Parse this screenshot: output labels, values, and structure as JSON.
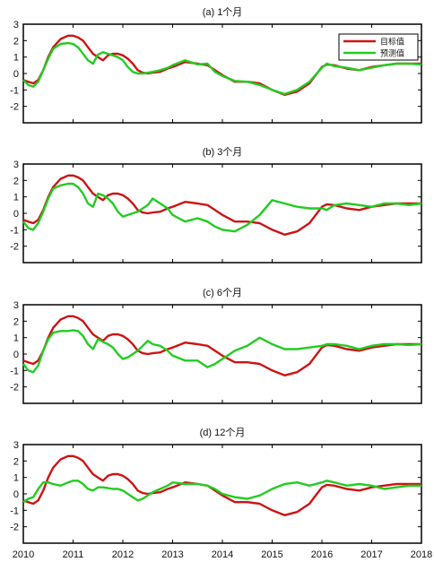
{
  "legend": {
    "target": "目标值",
    "predicted": "预测值"
  },
  "colors": {
    "target": "#cc1414",
    "predicted": "#22cc22",
    "frame": "#000000"
  },
  "x_ticks": [
    "2010",
    "2011",
    "2012",
    "2013",
    "2014",
    "2015",
    "2016",
    "2017",
    "2018"
  ],
  "chart_data": [
    {
      "type": "line",
      "title": "(a) 1个月",
      "xlim": [
        2010,
        2018
      ],
      "ylim": [
        -3,
        3
      ],
      "yticks": [
        -2,
        -1,
        0,
        1,
        2,
        3
      ],
      "legend": "top-right",
      "series": [
        {
          "name": "目标值",
          "x": [
            2010.0,
            2010.1,
            2010.2,
            2010.3,
            2010.4,
            2010.5,
            2010.6,
            2010.75,
            2010.9,
            2011.0,
            2011.1,
            2011.2,
            2011.3,
            2011.4,
            2011.5,
            2011.6,
            2011.7,
            2011.8,
            2011.9,
            2012.0,
            2012.1,
            2012.2,
            2012.3,
            2012.4,
            2012.5,
            2012.6,
            2012.75,
            2012.9,
            2013.0,
            2013.25,
            2013.5,
            2013.7,
            2013.85,
            2014.0,
            2014.25,
            2014.5,
            2014.75,
            2015.0,
            2015.25,
            2015.5,
            2015.75,
            2016.0,
            2016.1,
            2016.25,
            2016.5,
            2016.75,
            2017.0,
            2017.25,
            2017.5,
            2017.75,
            2018.0
          ],
          "y": [
            -0.4,
            -0.5,
            -0.6,
            -0.4,
            0.2,
            1.0,
            1.6,
            2.1,
            2.3,
            2.3,
            2.2,
            2.0,
            1.6,
            1.2,
            1.0,
            0.8,
            1.1,
            1.2,
            1.2,
            1.1,
            0.9,
            0.6,
            0.2,
            0.05,
            0.0,
            0.05,
            0.1,
            0.3,
            0.4,
            0.7,
            0.6,
            0.5,
            0.2,
            -0.1,
            -0.5,
            -0.5,
            -0.6,
            -1.0,
            -1.3,
            -1.1,
            -0.6,
            0.4,
            0.55,
            0.5,
            0.3,
            0.2,
            0.4,
            0.5,
            0.6,
            0.6,
            0.6
          ]
        },
        {
          "name": "预测值",
          "x": [
            2010.0,
            2010.1,
            2010.2,
            2010.3,
            2010.4,
            2010.5,
            2010.6,
            2010.75,
            2010.9,
            2011.0,
            2011.1,
            2011.2,
            2011.3,
            2011.4,
            2011.5,
            2011.6,
            2011.7,
            2011.8,
            2011.9,
            2012.0,
            2012.1,
            2012.2,
            2012.3,
            2012.4,
            2012.5,
            2012.6,
            2012.75,
            2012.9,
            2013.0,
            2013.25,
            2013.5,
            2013.7,
            2013.85,
            2014.0,
            2014.25,
            2014.5,
            2014.75,
            2015.0,
            2015.25,
            2015.5,
            2015.75,
            2016.0,
            2016.1,
            2016.25,
            2016.5,
            2016.75,
            2017.0,
            2017.25,
            2017.5,
            2017.75,
            2018.0
          ],
          "y": [
            -0.4,
            -0.7,
            -0.8,
            -0.5,
            0.2,
            0.9,
            1.5,
            1.8,
            1.85,
            1.8,
            1.6,
            1.2,
            0.8,
            0.6,
            1.15,
            1.3,
            1.2,
            1.1,
            1.0,
            0.8,
            0.4,
            0.1,
            0.0,
            0.0,
            0.05,
            0.1,
            0.2,
            0.35,
            0.5,
            0.8,
            0.55,
            0.6,
            0.1,
            -0.15,
            -0.45,
            -0.5,
            -0.7,
            -1.0,
            -1.25,
            -1.0,
            -0.5,
            0.35,
            0.6,
            0.45,
            0.35,
            0.2,
            0.35,
            0.5,
            0.6,
            0.6,
            0.55
          ]
        }
      ]
    },
    {
      "type": "line",
      "title": "(b) 3个月",
      "xlim": [
        2010,
        2018
      ],
      "ylim": [
        -3,
        3
      ],
      "yticks": [
        -2,
        -1,
        0,
        1,
        2,
        3
      ],
      "series": [
        {
          "name": "目标值",
          "x": [
            2010.0,
            2010.1,
            2010.2,
            2010.3,
            2010.4,
            2010.5,
            2010.6,
            2010.75,
            2010.9,
            2011.0,
            2011.1,
            2011.2,
            2011.3,
            2011.4,
            2011.5,
            2011.6,
            2011.7,
            2011.8,
            2011.9,
            2012.0,
            2012.1,
            2012.2,
            2012.3,
            2012.4,
            2012.5,
            2012.6,
            2012.75,
            2012.9,
            2013.0,
            2013.25,
            2013.5,
            2013.7,
            2013.85,
            2014.0,
            2014.25,
            2014.5,
            2014.75,
            2015.0,
            2015.25,
            2015.5,
            2015.75,
            2016.0,
            2016.1,
            2016.25,
            2016.5,
            2016.75,
            2017.0,
            2017.25,
            2017.5,
            2017.75,
            2018.0
          ],
          "y": [
            -0.4,
            -0.5,
            -0.6,
            -0.4,
            0.2,
            1.0,
            1.6,
            2.1,
            2.3,
            2.3,
            2.2,
            2.0,
            1.6,
            1.2,
            1.0,
            0.8,
            1.1,
            1.2,
            1.2,
            1.1,
            0.9,
            0.6,
            0.2,
            0.05,
            0.0,
            0.05,
            0.1,
            0.3,
            0.4,
            0.7,
            0.6,
            0.5,
            0.2,
            -0.1,
            -0.5,
            -0.5,
            -0.6,
            -1.0,
            -1.3,
            -1.1,
            -0.6,
            0.4,
            0.55,
            0.5,
            0.3,
            0.2,
            0.4,
            0.5,
            0.6,
            0.6,
            0.6
          ]
        },
        {
          "name": "预测值",
          "x": [
            2010.0,
            2010.1,
            2010.2,
            2010.3,
            2010.4,
            2010.5,
            2010.6,
            2010.75,
            2010.9,
            2011.0,
            2011.1,
            2011.2,
            2011.3,
            2011.4,
            2011.5,
            2011.6,
            2011.7,
            2011.8,
            2011.9,
            2012.0,
            2012.1,
            2012.2,
            2012.3,
            2012.4,
            2012.5,
            2012.6,
            2012.75,
            2012.9,
            2013.0,
            2013.25,
            2013.5,
            2013.7,
            2013.85,
            2014.0,
            2014.25,
            2014.5,
            2014.75,
            2015.0,
            2015.25,
            2015.5,
            2015.75,
            2016.0,
            2016.1,
            2016.25,
            2016.5,
            2016.75,
            2017.0,
            2017.25,
            2017.5,
            2017.75,
            2018.0
          ],
          "y": [
            -0.5,
            -0.9,
            -1.0,
            -0.6,
            0.1,
            0.9,
            1.5,
            1.7,
            1.8,
            1.8,
            1.6,
            1.2,
            0.6,
            0.4,
            1.2,
            1.1,
            0.9,
            0.6,
            0.1,
            -0.2,
            -0.1,
            0.0,
            0.1,
            0.3,
            0.5,
            0.9,
            0.6,
            0.3,
            -0.1,
            -0.5,
            -0.3,
            -0.5,
            -0.8,
            -1.0,
            -1.1,
            -0.7,
            -0.1,
            0.8,
            0.6,
            0.4,
            0.3,
            0.3,
            0.2,
            0.5,
            0.6,
            0.5,
            0.4,
            0.6,
            0.6,
            0.5,
            0.6
          ]
        }
      ]
    },
    {
      "type": "line",
      "title": "(c) 6个月",
      "xlim": [
        2010,
        2018
      ],
      "ylim": [
        -3,
        3
      ],
      "yticks": [
        -2,
        -1,
        0,
        1,
        2,
        3
      ],
      "series": [
        {
          "name": "目标值",
          "x": [
            2010.0,
            2010.1,
            2010.2,
            2010.3,
            2010.4,
            2010.5,
            2010.6,
            2010.75,
            2010.9,
            2011.0,
            2011.1,
            2011.2,
            2011.3,
            2011.4,
            2011.5,
            2011.6,
            2011.7,
            2011.8,
            2011.9,
            2012.0,
            2012.1,
            2012.2,
            2012.3,
            2012.4,
            2012.5,
            2012.6,
            2012.75,
            2012.9,
            2013.0,
            2013.25,
            2013.5,
            2013.7,
            2013.85,
            2014.0,
            2014.25,
            2014.5,
            2014.75,
            2015.0,
            2015.25,
            2015.5,
            2015.75,
            2016.0,
            2016.1,
            2016.25,
            2016.5,
            2016.75,
            2017.0,
            2017.25,
            2017.5,
            2017.75,
            2018.0
          ],
          "y": [
            -0.4,
            -0.5,
            -0.6,
            -0.4,
            0.2,
            1.0,
            1.6,
            2.1,
            2.3,
            2.3,
            2.2,
            2.0,
            1.6,
            1.2,
            1.0,
            0.8,
            1.1,
            1.2,
            1.2,
            1.1,
            0.9,
            0.6,
            0.2,
            0.05,
            0.0,
            0.05,
            0.1,
            0.3,
            0.4,
            0.7,
            0.6,
            0.5,
            0.2,
            -0.1,
            -0.5,
            -0.5,
            -0.6,
            -1.0,
            -1.3,
            -1.1,
            -0.6,
            0.4,
            0.55,
            0.5,
            0.3,
            0.2,
            0.4,
            0.5,
            0.6,
            0.6,
            0.6
          ]
        },
        {
          "name": "预测值",
          "x": [
            2010.0,
            2010.1,
            2010.2,
            2010.3,
            2010.4,
            2010.5,
            2010.6,
            2010.75,
            2010.9,
            2011.0,
            2011.1,
            2011.2,
            2011.3,
            2011.4,
            2011.5,
            2011.6,
            2011.7,
            2011.8,
            2011.9,
            2012.0,
            2012.1,
            2012.2,
            2012.3,
            2012.4,
            2012.5,
            2012.6,
            2012.75,
            2012.9,
            2013.0,
            2013.25,
            2013.5,
            2013.7,
            2013.85,
            2014.0,
            2014.25,
            2014.5,
            2014.75,
            2015.0,
            2015.25,
            2015.5,
            2015.75,
            2016.0,
            2016.1,
            2016.25,
            2016.5,
            2016.75,
            2017.0,
            2017.25,
            2017.5,
            2017.75,
            2018.0
          ],
          "y": [
            -0.6,
            -1.0,
            -1.1,
            -0.7,
            0.2,
            0.9,
            1.3,
            1.4,
            1.4,
            1.45,
            1.4,
            1.1,
            0.6,
            0.3,
            0.9,
            0.75,
            0.6,
            0.4,
            0.0,
            -0.3,
            -0.2,
            0.0,
            0.2,
            0.5,
            0.8,
            0.6,
            0.5,
            0.2,
            -0.1,
            -0.4,
            -0.4,
            -0.8,
            -0.6,
            -0.3,
            0.2,
            0.5,
            1.0,
            0.6,
            0.3,
            0.3,
            0.4,
            0.5,
            0.6,
            0.6,
            0.5,
            0.3,
            0.5,
            0.6,
            0.6,
            0.55,
            0.6
          ]
        }
      ]
    },
    {
      "type": "line",
      "title": "(d) 12个月",
      "xlim": [
        2010,
        2018
      ],
      "ylim": [
        -3,
        3
      ],
      "yticks": [
        -2,
        -1,
        0,
        1,
        2,
        3
      ],
      "series": [
        {
          "name": "目标值",
          "x": [
            2010.0,
            2010.1,
            2010.2,
            2010.3,
            2010.4,
            2010.5,
            2010.6,
            2010.75,
            2010.9,
            2011.0,
            2011.1,
            2011.2,
            2011.3,
            2011.4,
            2011.5,
            2011.6,
            2011.7,
            2011.8,
            2011.9,
            2012.0,
            2012.1,
            2012.2,
            2012.3,
            2012.4,
            2012.5,
            2012.6,
            2012.75,
            2012.9,
            2013.0,
            2013.25,
            2013.5,
            2013.7,
            2013.85,
            2014.0,
            2014.25,
            2014.5,
            2014.75,
            2015.0,
            2015.25,
            2015.5,
            2015.75,
            2016.0,
            2016.1,
            2016.25,
            2016.5,
            2016.75,
            2017.0,
            2017.25,
            2017.5,
            2017.75,
            2018.0
          ],
          "y": [
            -0.4,
            -0.5,
            -0.6,
            -0.4,
            0.2,
            1.0,
            1.6,
            2.1,
            2.3,
            2.3,
            2.2,
            2.0,
            1.6,
            1.2,
            1.0,
            0.8,
            1.1,
            1.2,
            1.2,
            1.1,
            0.9,
            0.6,
            0.2,
            0.05,
            0.0,
            0.05,
            0.1,
            0.3,
            0.4,
            0.7,
            0.6,
            0.5,
            0.2,
            -0.1,
            -0.5,
            -0.5,
            -0.6,
            -1.0,
            -1.3,
            -1.1,
            -0.6,
            0.4,
            0.55,
            0.5,
            0.3,
            0.2,
            0.4,
            0.5,
            0.6,
            0.6,
            0.6
          ]
        },
        {
          "name": "预测值",
          "x": [
            2010.0,
            2010.1,
            2010.2,
            2010.3,
            2010.4,
            2010.5,
            2010.6,
            2010.75,
            2010.9,
            2011.0,
            2011.1,
            2011.2,
            2011.3,
            2011.4,
            2011.5,
            2011.6,
            2011.7,
            2011.8,
            2011.9,
            2012.0,
            2012.1,
            2012.2,
            2012.3,
            2012.4,
            2012.5,
            2012.6,
            2012.75,
            2012.9,
            2013.0,
            2013.25,
            2013.5,
            2013.7,
            2013.85,
            2014.0,
            2014.25,
            2014.5,
            2014.75,
            2015.0,
            2015.25,
            2015.5,
            2015.75,
            2016.0,
            2016.1,
            2016.25,
            2016.5,
            2016.75,
            2017.0,
            2017.25,
            2017.5,
            2017.75,
            2018.0
          ],
          "y": [
            -0.5,
            -0.3,
            -0.2,
            0.3,
            0.7,
            0.7,
            0.6,
            0.5,
            0.7,
            0.8,
            0.8,
            0.6,
            0.3,
            0.2,
            0.4,
            0.4,
            0.35,
            0.3,
            0.3,
            0.2,
            0.0,
            -0.2,
            -0.4,
            -0.3,
            -0.1,
            0.1,
            0.3,
            0.5,
            0.7,
            0.6,
            0.6,
            0.5,
            0.3,
            0.0,
            -0.2,
            -0.3,
            -0.1,
            0.3,
            0.6,
            0.7,
            0.5,
            0.7,
            0.8,
            0.7,
            0.5,
            0.6,
            0.5,
            0.3,
            0.4,
            0.5,
            0.5
          ]
        }
      ]
    }
  ]
}
